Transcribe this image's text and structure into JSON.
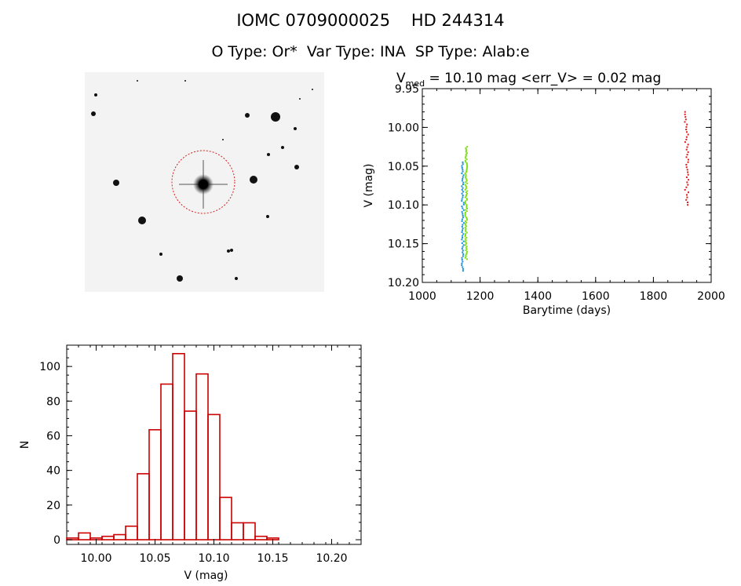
{
  "header": {
    "title": "IOMC 0709000025    HD 244314",
    "subtitle": "O Type: Or*  Var Type: INA  SP Type: Alab:e"
  },
  "chart_data": [
    {
      "type": "scatter",
      "title_main": "V",
      "title_sub": "med",
      "title_rest": " = 10.10 mag <err_V> = 0.02 mag",
      "xlabel": "Barytime (days)",
      "ylabel": "V (mag)",
      "xlim": [
        1000,
        2000
      ],
      "ylim": [
        10.2,
        9.95
      ],
      "y_inverted": true,
      "xticks": [
        1000,
        1200,
        1400,
        1600,
        1800,
        2000
      ],
      "xtick_labels": [
        "1000",
        "1200",
        "1400",
        "1600",
        "1800",
        "2000"
      ],
      "yticks": [
        9.95,
        10.0,
        10.05,
        10.1,
        10.15,
        10.2
      ],
      "ytick_labels": [
        "9.95",
        "10.00",
        "10.05",
        "10.10",
        "10.15",
        "10.20"
      ],
      "series": [
        {
          "color": "#1a8fd6",
          "x": 1140,
          "ymin": 10.045,
          "ymax": 10.185,
          "count": 60
        },
        {
          "color": "#7fe01a",
          "x": 1152,
          "ymin": 10.025,
          "ymax": 10.17,
          "count": 90
        },
        {
          "color": "#d42020",
          "x": 1915,
          "ymin": 9.98,
          "ymax": 10.1,
          "count": 38
        }
      ]
    },
    {
      "type": "bar",
      "xlabel": "V (mag)",
      "ylabel": "N",
      "xlim": [
        9.975,
        10.225
      ],
      "ylim": [
        0,
        115
      ],
      "xticks": [
        10.0,
        10.05,
        10.1,
        10.15,
        10.2
      ],
      "xtick_labels": [
        "10.00",
        "10.05",
        "10.10",
        "10.15",
        "10.20"
      ],
      "yticks": [
        0,
        20,
        40,
        60,
        80,
        100
      ],
      "ytick_labels": [
        "0",
        "20",
        "40",
        "60",
        "80",
        "100"
      ],
      "bin_width": 0.01,
      "bin_start": 9.98,
      "values": [
        1,
        4,
        1,
        2,
        3,
        8,
        39,
        65,
        92,
        110,
        76,
        98,
        74,
        25,
        10,
        10,
        2,
        1
      ],
      "color": "#cc0000"
    }
  ],
  "finder": {
    "background": "#f4f4f4",
    "circle_color": "#d42020"
  }
}
